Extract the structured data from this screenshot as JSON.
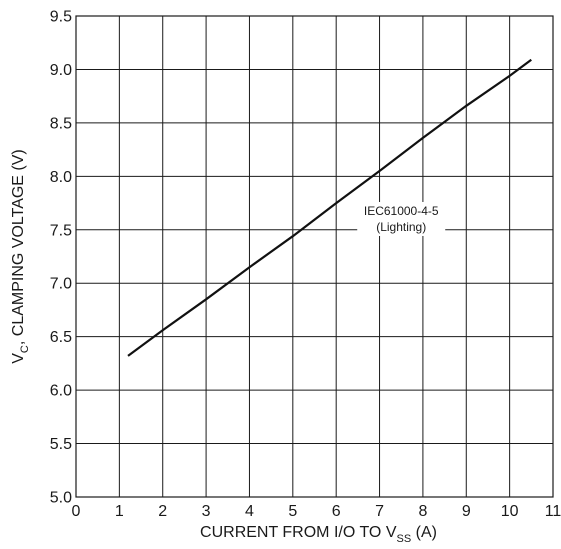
{
  "chart_data": {
    "type": "line",
    "title": "",
    "xlabel": {
      "main": "CURRENT FROM I/O TO V",
      "sub": "SS",
      "suffix": " (A)"
    },
    "ylabel": {
      "main": "V",
      "sub": "C",
      "suffix": ", CLAMPING VOLTAGE (V)"
    },
    "xlim": [
      0,
      11
    ],
    "ylim": [
      5.0,
      9.5
    ],
    "xticks": [
      "0",
      "1",
      "2",
      "3",
      "4",
      "5",
      "6",
      "7",
      "8",
      "9",
      "10",
      "11"
    ],
    "yticks": [
      "5.0",
      "5.5",
      "6.0",
      "6.5",
      "7.0",
      "7.5",
      "8.0",
      "8.5",
      "9.0",
      "9.5"
    ],
    "grid": true,
    "series": [
      {
        "x": [
          1.2,
          2.0,
          3.0,
          4.0,
          5.0,
          6.0,
          7.0,
          8.0,
          9.0,
          10.0,
          10.5
        ],
        "y": [
          6.32,
          6.56,
          6.85,
          7.15,
          7.44,
          7.75,
          8.05,
          8.36,
          8.66,
          8.94,
          9.09
        ]
      }
    ],
    "annotation": {
      "line1": "IEC61000-4-5",
      "line2": "(Lighting)",
      "x": 7.5,
      "y": 7.47
    },
    "colors": {
      "line": "#111111",
      "grid": "#1a1a1a",
      "text": "#1a1a1a"
    }
  }
}
